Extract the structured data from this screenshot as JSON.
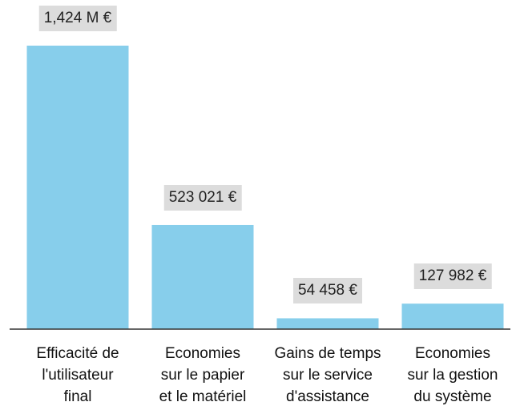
{
  "chart_data": {
    "type": "bar",
    "categories": [
      "Efficacité de\nl'utilisateur\nfinal",
      "Economies\nsur le papier\net le matériel",
      "Gains de temps\nsur le service\nd'assistance",
      "Economies\nsur la gestion\ndu système"
    ],
    "values": [
      1424000,
      523021,
      54458,
      127982
    ],
    "value_labels": [
      "1,424 M €",
      "523 021 €",
      "54 458 €",
      "127 982 €"
    ],
    "color": "#87ceeb"
  }
}
